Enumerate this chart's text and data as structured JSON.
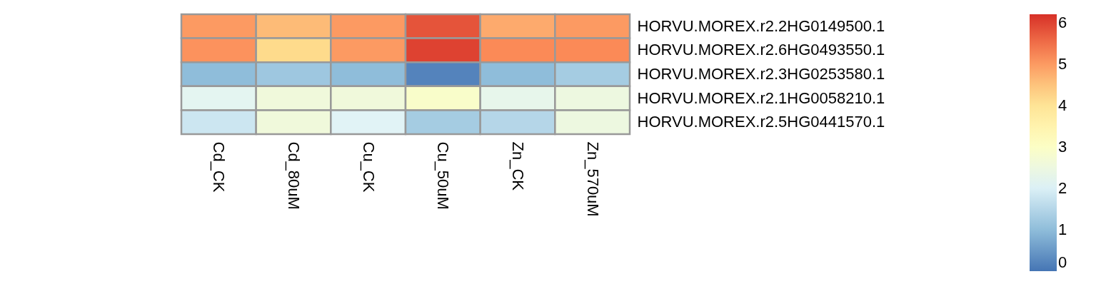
{
  "chart_data": {
    "type": "heatmap",
    "categories": [
      "Cd_CK",
      "Cd_80uM",
      "Cu_CK",
      "Cu_50uM",
      "Zn_CK",
      "Zn_570uM"
    ],
    "y_categories": [
      "HORVU.MOREX.r2.2HG0149500.1",
      "HORVU.MOREX.r2.6HG0493550.1",
      "HORVU.MOREX.r2.3HG0253580.1",
      "HORVU.MOREX.r2.1HG0058210.1",
      "HORVU.MOREX.r2.5HG0441570.1"
    ],
    "cells": [
      [
        5.0,
        4.6,
        5.0,
        5.8,
        4.8,
        5.0
      ],
      [
        5.1,
        4.2,
        5.0,
        6.0,
        5.2,
        5.2
      ],
      [
        1.0,
        1.2,
        1.0,
        0.2,
        1.0,
        1.3
      ],
      [
        2.2,
        2.6,
        2.6,
        2.9,
        2.3,
        2.5
      ],
      [
        1.8,
        2.6,
        2.1,
        1.3,
        1.5,
        2.5
      ]
    ],
    "clim": [
      0,
      6.2
    ],
    "cticks": [
      0,
      1,
      2,
      3,
      4,
      5,
      6
    ]
  }
}
